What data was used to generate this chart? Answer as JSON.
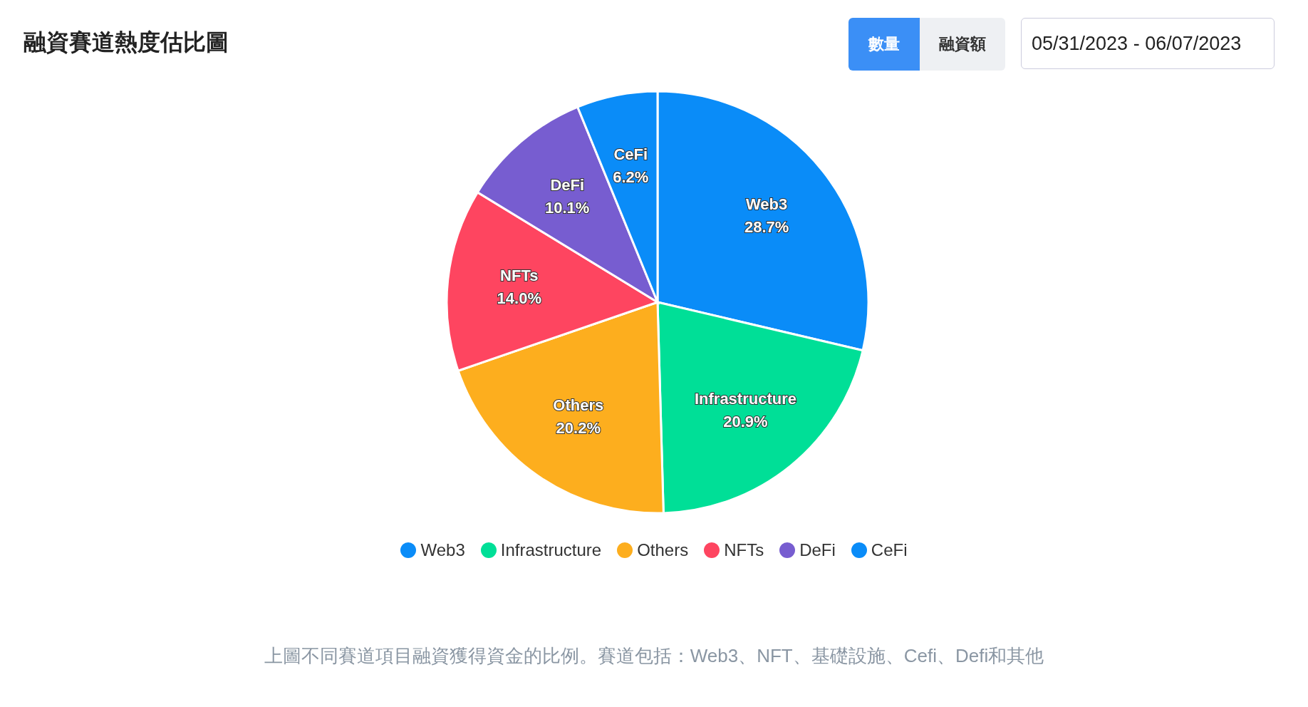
{
  "chart_data": {
    "type": "pie",
    "title": "融資賽道熱度估比圖",
    "subtitle": "05/31/2023 - 06/07/2023",
    "categories": [
      "Web3",
      "Infrastructure",
      "Others",
      "NFTs",
      "DeFi",
      "CeFi"
    ],
    "values": [
      28.7,
      20.9,
      20.2,
      14.0,
      10.1,
      6.2
    ],
    "value_labels": [
      "28.7%",
      "20.9%",
      "20.2%",
      "14.0%",
      "10.1%",
      "6.2%"
    ],
    "colors": [
      "#0a8cf8",
      "#00df97",
      "#fdae1e",
      "#fe4560",
      "#775dd0",
      "#0a8cf8"
    ],
    "legend": "bottom",
    "annotations": [
      "數量",
      "融資額",
      "上圖不同賽道項目融資獲得資金的比例。賽道包括：Web3、NFT、基礎設施、Cefi、Defi和其他"
    ]
  }
}
